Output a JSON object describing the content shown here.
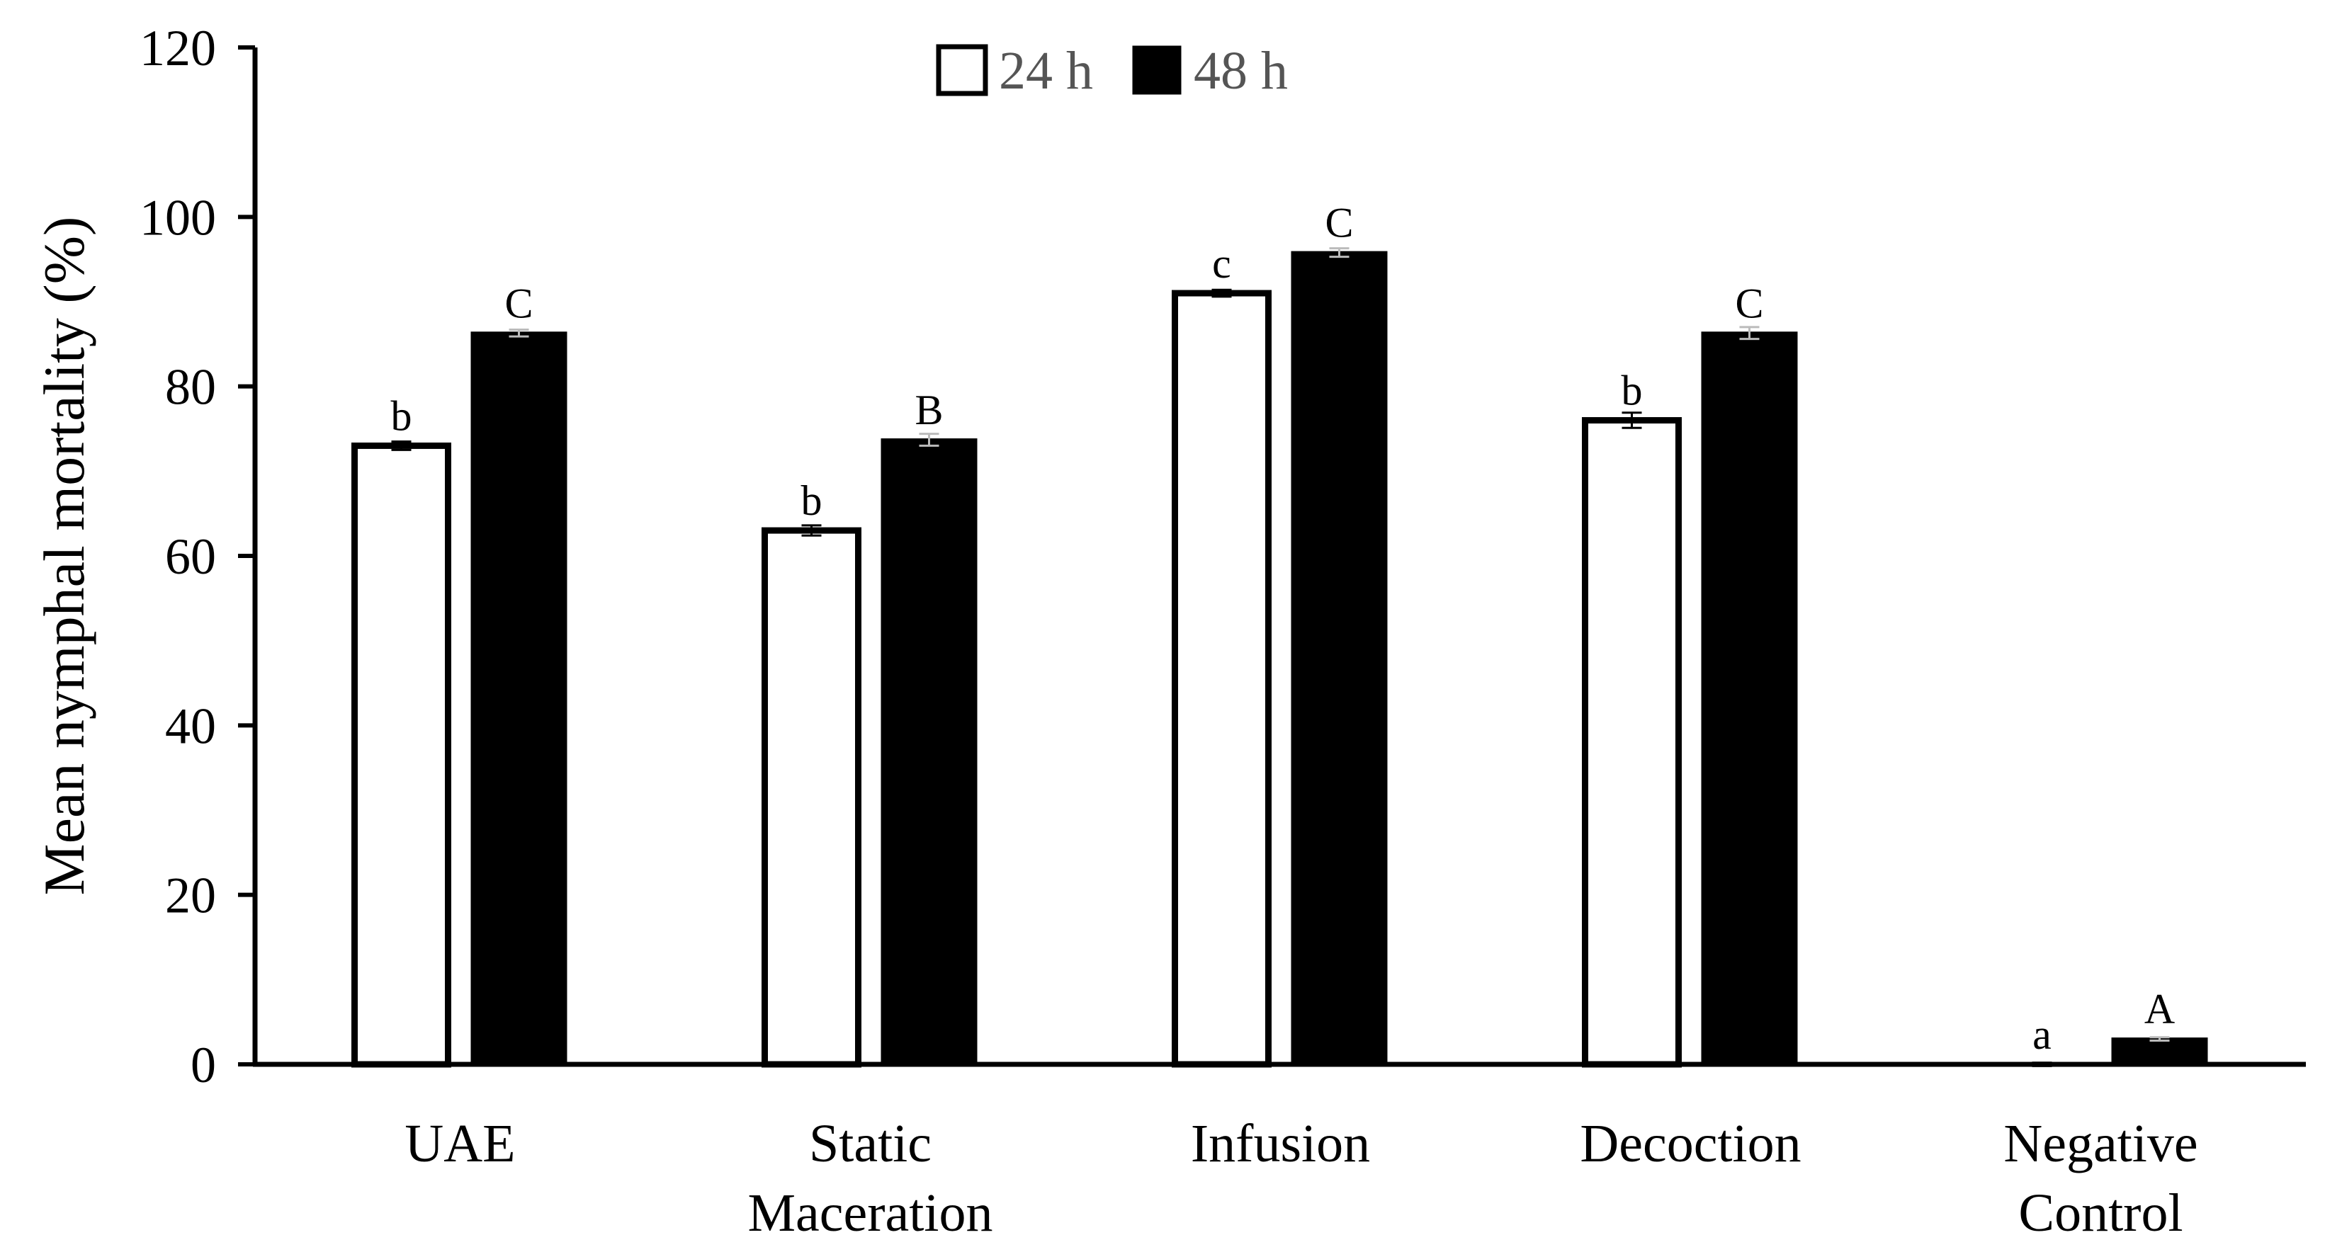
{
  "chart_data": {
    "type": "bar",
    "title": "",
    "xlabel": "",
    "ylabel": "Mean nymphal mortality (%)",
    "ylim": [
      0,
      120
    ],
    "yticks": [
      0,
      20,
      40,
      60,
      80,
      100,
      120
    ],
    "grid": false,
    "legend_position": "top-center",
    "categories": [
      [
        "UAE"
      ],
      [
        "Static",
        "Maceration"
      ],
      [
        "Infusion"
      ],
      [
        "Decoction"
      ],
      [
        "Negative",
        "Control"
      ]
    ],
    "series": [
      {
        "name": "24 h",
        "fill": "#ffffff",
        "stroke": "#000000",
        "values": [
          73,
          63,
          91,
          76,
          0
        ],
        "errors": [
          0.5,
          0.6,
          0.4,
          0.9,
          0.2
        ],
        "significance": [
          "b",
          "b",
          "c",
          "b",
          "a"
        ]
      },
      {
        "name": "48 h",
        "fill": "#000000",
        "stroke": "#000000",
        "values": [
          86.3,
          73.7,
          95.8,
          86.3,
          3
        ],
        "errors": [
          0.4,
          0.7,
          0.5,
          0.7,
          0.2
        ],
        "significance": [
          "C",
          "B",
          "C",
          "C",
          "A"
        ]
      }
    ]
  }
}
